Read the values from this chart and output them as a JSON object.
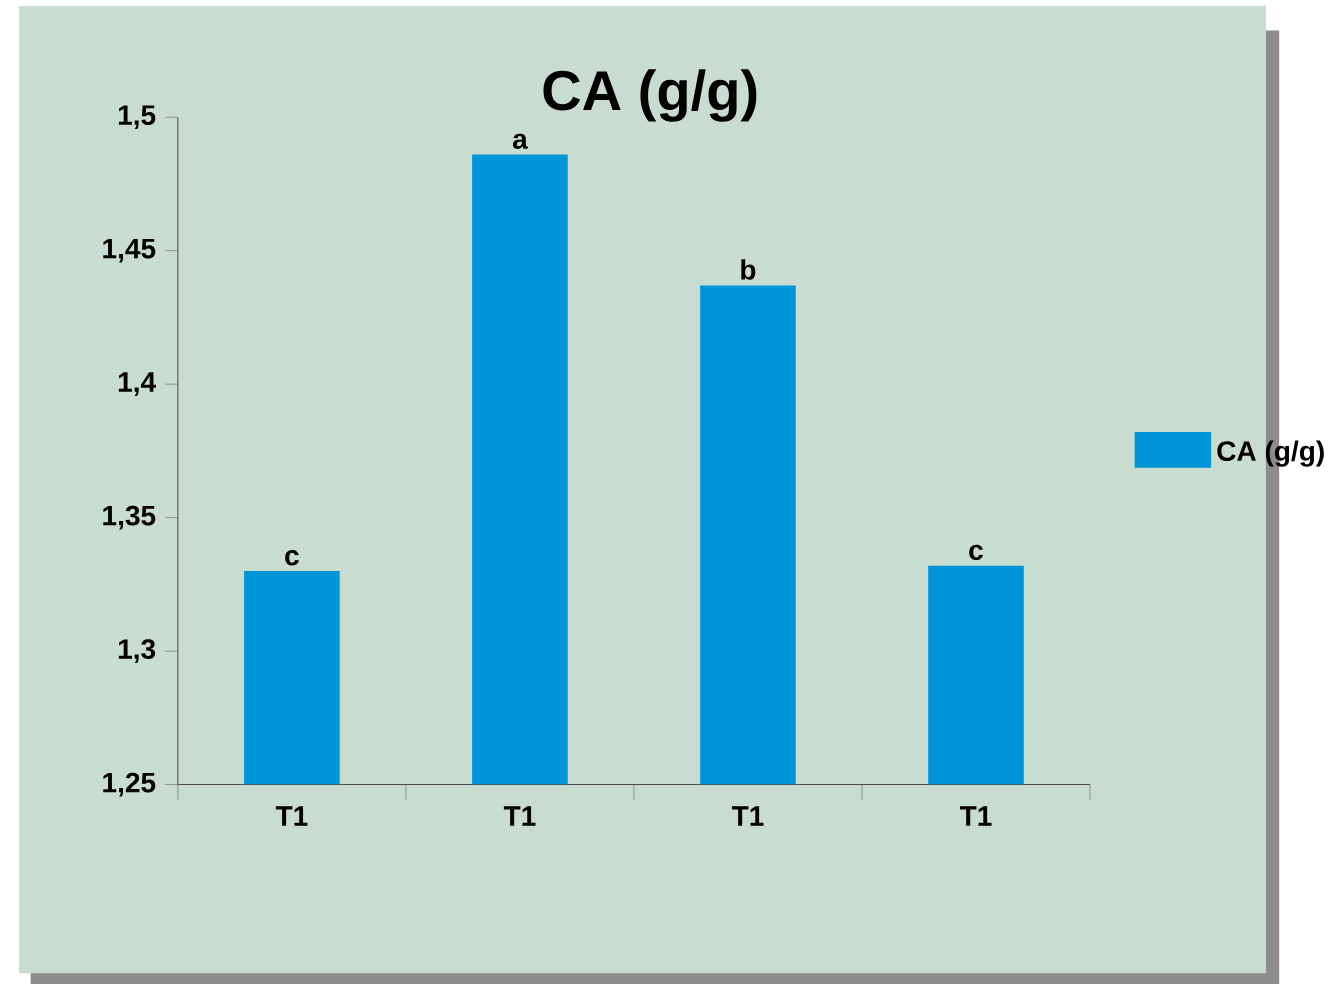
{
  "chart_data": {
    "type": "bar",
    "title": "CA (g/g)",
    "categories": [
      "T1",
      "T1",
      "T1",
      "T1"
    ],
    "series": [
      {
        "name": "CA (g/g)",
        "color": "#0095d9",
        "values": [
          1.33,
          1.486,
          1.437,
          1.332
        ],
        "value_labels": [
          "c",
          "a",
          "b",
          "c"
        ]
      }
    ],
    "ylim": [
      1.25,
      1.5
    ],
    "yticks": [
      {
        "value": 1.25,
        "label": "1,25"
      },
      {
        "value": 1.3,
        "label": "1,3"
      },
      {
        "value": 1.35,
        "label": "1,35"
      },
      {
        "value": 1.4,
        "label": "1,4"
      },
      {
        "value": 1.45,
        "label": "1,45"
      },
      {
        "value": 1.5,
        "label": "1,5"
      }
    ],
    "grid": false,
    "legend": "right"
  }
}
